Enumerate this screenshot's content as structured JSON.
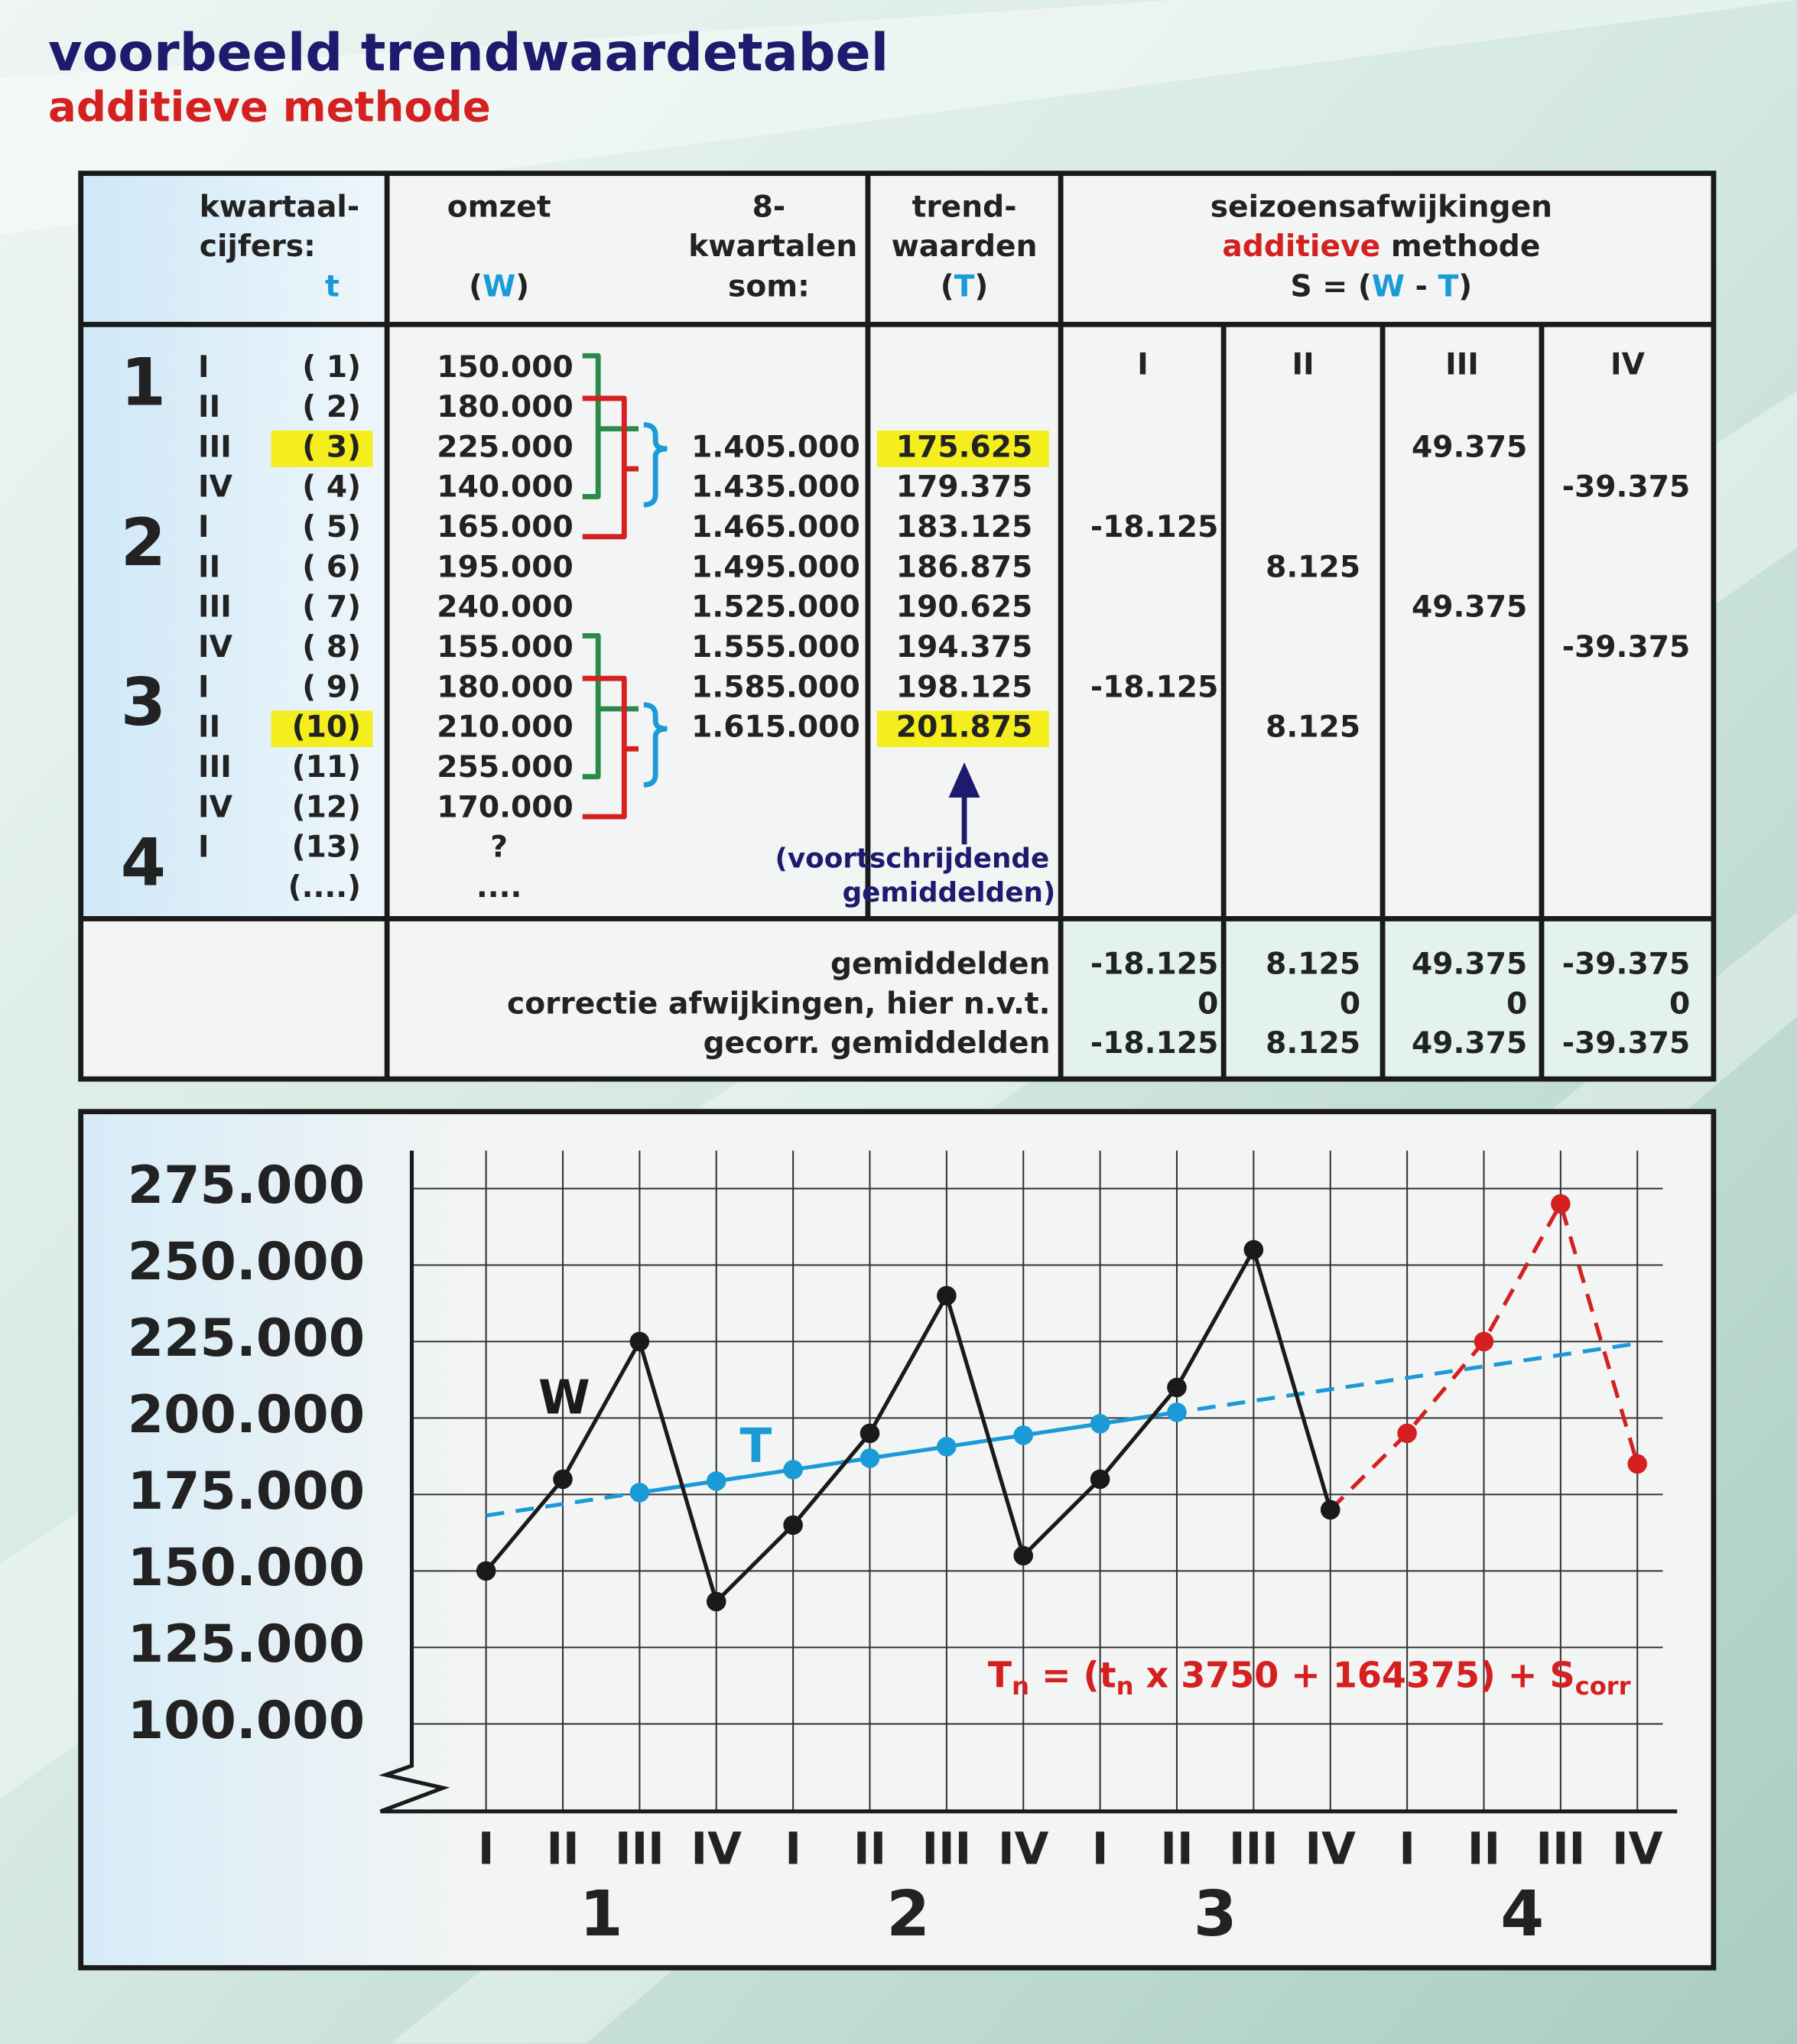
{
  "title": "voorbeeld trendwaardetabel",
  "subtitle": "additieve methode",
  "table": {
    "header": [
      [
        {
          "text": "kwartaal-"
        }
      ],
      [
        {
          "text": "cijfers:"
        }
      ],
      [
        {
          "text": "t",
          "color": "#1a9ad6"
        }
      ],
      [
        {
          "text": "omzet"
        }
      ],
      [
        {
          "text": "("
        },
        {
          "text": "W",
          "color": "#1a9ad6"
        },
        {
          "text": ")"
        }
      ],
      [
        {
          "text": "8-"
        }
      ],
      [
        {
          "text": "kwartalen"
        }
      ],
      [
        {
          "text": "som:"
        }
      ],
      [
        {
          "text": "trend-"
        }
      ],
      [
        {
          "text": "waarden"
        }
      ],
      [
        {
          "text": "("
        },
        {
          "text": "T",
          "color": "#1a9ad6"
        },
        {
          "text": ")"
        }
      ],
      [
        {
          "text": "seizoensafwijkingen"
        }
      ],
      [
        {
          "text": "additieve",
          "color": "#d42020"
        },
        {
          "text": " methode"
        }
      ],
      [
        {
          "text": "S = ("
        },
        {
          "text": "W",
          "color": "#1a9ad6"
        },
        {
          "text": " - "
        },
        {
          "text": "T",
          "color": "#1a9ad6"
        },
        {
          "text": ")"
        }
      ]
    ],
    "season_columns": [
      "I",
      "II",
      "III",
      "IV"
    ],
    "rows": [
      [
        "1",
        "I",
        "( 1)",
        "150.000",
        null,
        null,
        null,
        null,
        null,
        null
      ],
      [
        null,
        "II",
        "( 2)",
        "180.000",
        null,
        null,
        null,
        null,
        null,
        null
      ],
      [
        null,
        "III",
        "( 3)",
        "225.000",
        "1.405.000",
        "175.625",
        null,
        null,
        "49.375",
        null
      ],
      [
        null,
        "IV",
        "( 4)",
        "140.000",
        "1.435.000",
        "179.375",
        null,
        null,
        null,
        "-39.375"
      ],
      [
        "2",
        "I",
        "( 5)",
        "165.000",
        "1.465.000",
        "183.125",
        "-18.125",
        null,
        null,
        null
      ],
      [
        null,
        "II",
        "( 6)",
        "195.000",
        "1.495.000",
        "186.875",
        null,
        "8.125",
        null,
        null
      ],
      [
        null,
        "III",
        "( 7)",
        "240.000",
        "1.525.000",
        "190.625",
        null,
        null,
        "49.375",
        null
      ],
      [
        null,
        "IV",
        "( 8)",
        "155.000",
        "1.555.000",
        "194.375",
        null,
        null,
        null,
        "-39.375"
      ],
      [
        "3",
        "I",
        "( 9)",
        "180.000",
        "1.585.000",
        "198.125",
        "-18.125",
        null,
        null,
        null
      ],
      [
        null,
        "II",
        "(10)",
        "210.000",
        "1.615.000",
        "201.875",
        null,
        "8.125",
        null,
        null
      ],
      [
        null,
        "III",
        "(11)",
        "255.000",
        null,
        null,
        null,
        null,
        null,
        null
      ],
      [
        null,
        "IV",
        "(12)",
        "170.000",
        null,
        null,
        null,
        null,
        null,
        null
      ],
      [
        "4",
        "I",
        "(13)",
        "?",
        null,
        null,
        null,
        null,
        null,
        null
      ],
      [
        null,
        null,
        "(....)",
        "....",
        null,
        null,
        null,
        null,
        null,
        null
      ]
    ],
    "highlight_rows": [
      2,
      9
    ],
    "highlight_color": "#f5ee1e",
    "footer": [
      {
        "label": "gemiddelden",
        "values": [
          "-18.125",
          "8.125",
          "49.375",
          "-39.375"
        ]
      },
      {
        "label": "correctie afwijkingen, hier n.v.t.",
        "values": [
          "0",
          "0",
          "0",
          "0"
        ]
      },
      {
        "label": "gecorr. gemiddelden",
        "values": [
          "-18.125",
          "8.125",
          "49.375",
          "-39.375"
        ]
      }
    ],
    "annotation": [
      "(voortschrijdende",
      "gemiddelden)"
    ]
  },
  "chart_data": {
    "type": "line",
    "categories": [
      "I",
      "II",
      "III",
      "IV",
      "I",
      "II",
      "III",
      "IV",
      "I",
      "II",
      "III",
      "IV",
      "I",
      "II",
      "III",
      "IV"
    ],
    "groups": [
      "1",
      "2",
      "3",
      "4"
    ],
    "ylim": [
      71400,
      287400
    ],
    "yticks": [
      {
        "value": 100000,
        "label": "100.000"
      },
      {
        "value": 125000,
        "label": "125.000"
      },
      {
        "value": 150000,
        "label": "150.000"
      },
      {
        "value": 175000,
        "label": "175.000"
      },
      {
        "value": 200000,
        "label": "200.000"
      },
      {
        "value": 225000,
        "label": "225.000"
      },
      {
        "value": 250000,
        "label": "250.000"
      },
      {
        "value": 275000,
        "label": "275.000"
      }
    ],
    "grid": true,
    "series": [
      {
        "values": [
          168125,
          171875,
          175625,
          179375,
          183125,
          186875,
          190625,
          194375,
          198125,
          201875,
          205625,
          209375,
          213125,
          216875,
          220625,
          224375
        ],
        "color": "#1a9ad6",
        "dashed": true,
        "markers": false
      },
      {
        "values": [
          null,
          null,
          null,
          null,
          null,
          null,
          null,
          null,
          null,
          null,
          null,
          170000,
          195000,
          225000,
          270000,
          185000
        ],
        "color": "#d42020",
        "dashed": true,
        "markers": true
      },
      {
        "name": "T",
        "values": [
          null,
          null,
          175625,
          179375,
          183125,
          186875,
          190625,
          194375,
          198125,
          201875,
          null,
          null,
          null,
          null,
          null,
          null
        ],
        "color": "#1a9ad6",
        "dashed": false,
        "markers": true
      },
      {
        "name": "W",
        "values": [
          150000,
          180000,
          225000,
          140000,
          165000,
          195000,
          240000,
          155000,
          180000,
          210000,
          255000,
          170000,
          null,
          null,
          null,
          null
        ],
        "color": "#1a1a1a",
        "dashed": false,
        "markers": true
      }
    ],
    "annotation": [
      {
        "text": "T"
      },
      {
        "text": "n",
        "sub": true
      },
      {
        "text": " = (t"
      },
      {
        "text": "n",
        "sub": true
      },
      {
        "text": " x 3750 + 164375) + S"
      },
      {
        "text": "corr",
        "sub": true
      }
    ],
    "annotation_color": "#d42020"
  }
}
